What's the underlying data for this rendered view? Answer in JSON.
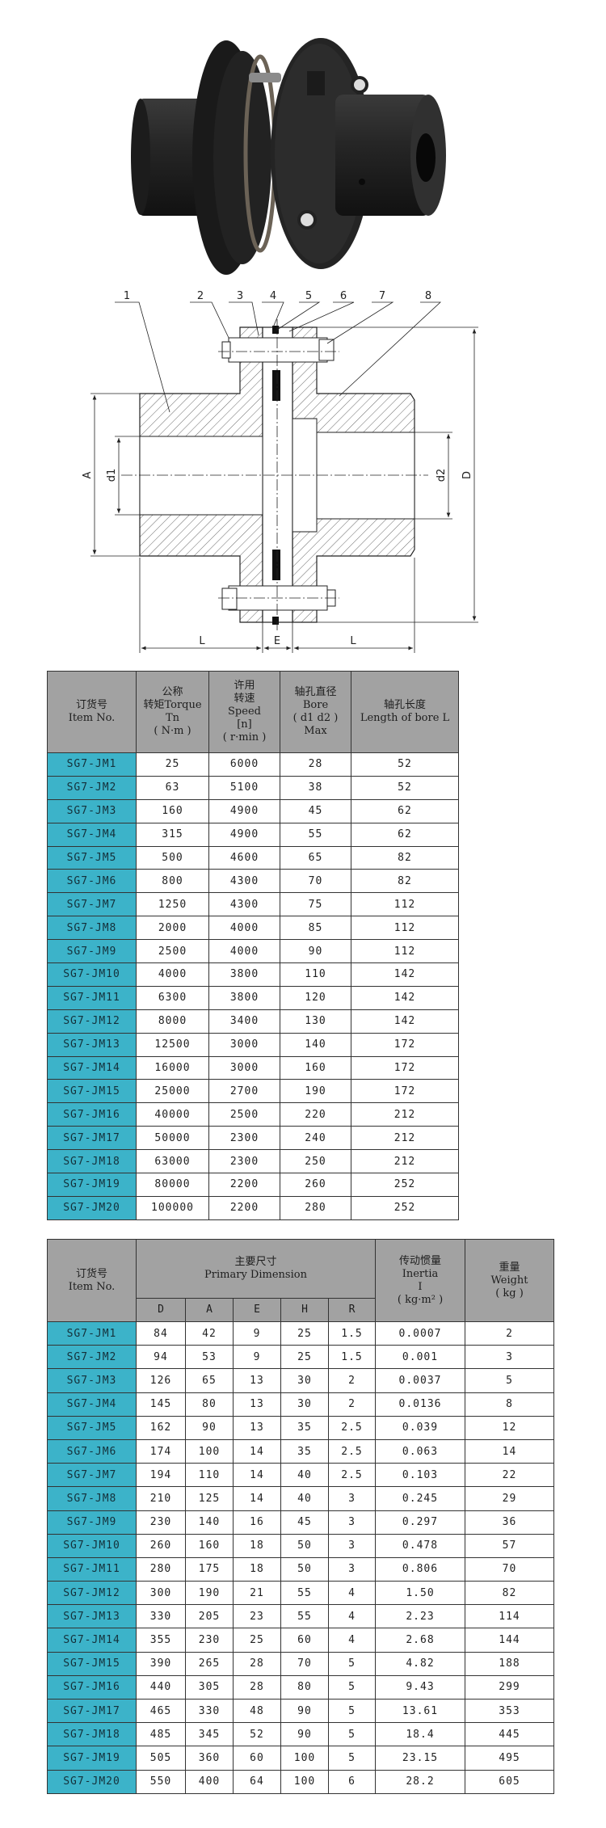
{
  "drawing": {
    "part_numbers": [
      "1",
      "2",
      "3",
      "4",
      "5",
      "6",
      "7",
      "8"
    ],
    "dimension_labels": {
      "A": "A",
      "d1": "d1",
      "d2": "d2",
      "D": "D",
      "L": "L",
      "E": "E"
    }
  },
  "table1": {
    "headers": [
      {
        "zh": "订货号",
        "en": "Item No."
      },
      {
        "zh": "公称",
        "en": "转矩Torque",
        "en2": "Tn",
        "unit": "( N·m )"
      },
      {
        "zh": "许用",
        "zh2": "转速",
        "en": "Speed",
        "en2": "[n]",
        "unit": "( r·min )"
      },
      {
        "zh": "轴孔直径",
        "en": "Bore",
        "en2": "( d1  d2 )",
        "unit": "Max"
      },
      {
        "zh": "轴孔长度",
        "en": "Length of bore L"
      }
    ],
    "rows": [
      [
        "SG7-JM1",
        "25",
        "6000",
        "28",
        "52"
      ],
      [
        "SG7-JM2",
        "63",
        "5100",
        "38",
        "52"
      ],
      [
        "SG7-JM3",
        "160",
        "4900",
        "45",
        "62"
      ],
      [
        "SG7-JM4",
        "315",
        "4900",
        "55",
        "62"
      ],
      [
        "SG7-JM5",
        "500",
        "4600",
        "65",
        "82"
      ],
      [
        "SG7-JM6",
        "800",
        "4300",
        "70",
        "82"
      ],
      [
        "SG7-JM7",
        "1250",
        "4300",
        "75",
        "112"
      ],
      [
        "SG7-JM8",
        "2000",
        "4000",
        "85",
        "112"
      ],
      [
        "SG7-JM9",
        "2500",
        "4000",
        "90",
        "112"
      ],
      [
        "SG7-JM10",
        "4000",
        "3800",
        "110",
        "142"
      ],
      [
        "SG7-JM11",
        "6300",
        "3800",
        "120",
        "142"
      ],
      [
        "SG7-JM12",
        "8000",
        "3400",
        "130",
        "142"
      ],
      [
        "SG7-JM13",
        "12500",
        "3000",
        "140",
        "172"
      ],
      [
        "SG7-JM14",
        "16000",
        "3000",
        "160",
        "172"
      ],
      [
        "SG7-JM15",
        "25000",
        "2700",
        "190",
        "172"
      ],
      [
        "SG7-JM16",
        "40000",
        "2500",
        "220",
        "212"
      ],
      [
        "SG7-JM17",
        "50000",
        "2300",
        "240",
        "212"
      ],
      [
        "SG7-JM18",
        "63000",
        "2300",
        "250",
        "212"
      ],
      [
        "SG7-JM19",
        "80000",
        "2200",
        "260",
        "252"
      ],
      [
        "SG7-JM20",
        "100000",
        "2200",
        "280",
        "252"
      ]
    ]
  },
  "table2": {
    "item_header": {
      "zh": "订货号",
      "en": "Item No."
    },
    "dimension_header": {
      "zh": "主要尺寸",
      "en": "Primary Dimension"
    },
    "dimension_columns": [
      "D",
      "A",
      "E",
      "H",
      "R"
    ],
    "inertia_header": {
      "zh": "传动惯量",
      "en": "Inertia",
      "en2": "I",
      "unit": "( kg·m² )"
    },
    "weight_header": {
      "zh": "重量",
      "en": "Weight",
      "unit": "( kg )"
    },
    "rows": [
      [
        "SG7-JM1",
        "84",
        "42",
        "9",
        "25",
        "1.5",
        "0.0007",
        "2"
      ],
      [
        "SG7-JM2",
        "94",
        "53",
        "9",
        "25",
        "1.5",
        "0.001",
        "3"
      ],
      [
        "SG7-JM3",
        "126",
        "65",
        "13",
        "30",
        "2",
        "0.0037",
        "5"
      ],
      [
        "SG7-JM4",
        "145",
        "80",
        "13",
        "30",
        "2",
        "0.0136",
        "8"
      ],
      [
        "SG7-JM5",
        "162",
        "90",
        "13",
        "35",
        "2.5",
        "0.039",
        "12"
      ],
      [
        "SG7-JM6",
        "174",
        "100",
        "14",
        "35",
        "2.5",
        "0.063",
        "14"
      ],
      [
        "SG7-JM7",
        "194",
        "110",
        "14",
        "40",
        "2.5",
        "0.103",
        "22"
      ],
      [
        "SG7-JM8",
        "210",
        "125",
        "14",
        "40",
        "3",
        "0.245",
        "29"
      ],
      [
        "SG7-JM9",
        "230",
        "140",
        "16",
        "45",
        "3",
        "0.297",
        "36"
      ],
      [
        "SG7-JM10",
        "260",
        "160",
        "18",
        "50",
        "3",
        "0.478",
        "57"
      ],
      [
        "SG7-JM11",
        "280",
        "175",
        "18",
        "50",
        "3",
        "0.806",
        "70"
      ],
      [
        "SG7-JM12",
        "300",
        "190",
        "21",
        "55",
        "4",
        "1.50",
        "82"
      ],
      [
        "SG7-JM13",
        "330",
        "205",
        "23",
        "55",
        "4",
        "2.23",
        "114"
      ],
      [
        "SG7-JM14",
        "355",
        "230",
        "25",
        "60",
        "4",
        "2.68",
        "144"
      ],
      [
        "SG7-JM15",
        "390",
        "265",
        "28",
        "70",
        "5",
        "4.82",
        "188"
      ],
      [
        "SG7-JM16",
        "440",
        "305",
        "28",
        "80",
        "5",
        "9.43",
        "299"
      ],
      [
        "SG7-JM17",
        "465",
        "330",
        "48",
        "90",
        "5",
        "13.61",
        "353"
      ],
      [
        "SG7-JM18",
        "485",
        "345",
        "52",
        "90",
        "5",
        "18.4",
        "445"
      ],
      [
        "SG7-JM19",
        "505",
        "360",
        "60",
        "100",
        "5",
        "23.15",
        "495"
      ],
      [
        "SG7-JM20",
        "550",
        "400",
        "64",
        "100",
        "6",
        "28.2",
        "605"
      ]
    ]
  },
  "colors": {
    "item_cell": "#3cb3c9",
    "header_bg": "#a2a2a2",
    "grid": "#333333"
  }
}
